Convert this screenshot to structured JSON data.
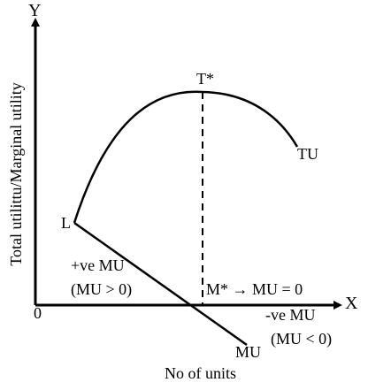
{
  "labels": {
    "y_axis_letter": "Y",
    "x_axis_letter": "X",
    "origin": "0",
    "y_axis_title": "Total utilittu/Marginal utility",
    "x_axis_title": "No of units",
    "tu_peak": "T*",
    "tu_curve": "TU",
    "start_point": "L",
    "mu_curve": "MU",
    "positive_mu": "+ve MU",
    "positive_mu_condition": "(MU > 0)",
    "zero_mu_point": "M* → MU = 0",
    "negative_mu": "-ve MU",
    "negative_mu_condition": "(MU < 0)"
  },
  "colors": {
    "ink": "#000000",
    "background": "#ffffff"
  }
}
